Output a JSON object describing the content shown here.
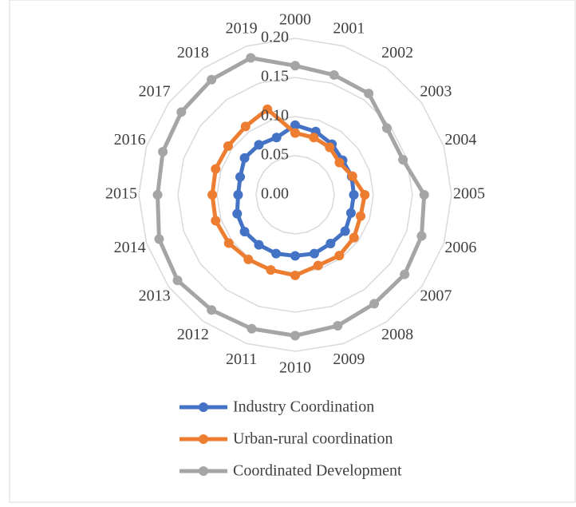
{
  "chart_data": {
    "type": "radar",
    "categories": [
      "2000",
      "2001",
      "2002",
      "2003",
      "2004",
      "2005",
      "2006",
      "2007",
      "2008",
      "2009",
      "2010",
      "2011",
      "2012",
      "2013",
      "2014",
      "2015",
      "2016",
      "2017",
      "2018",
      "2019"
    ],
    "series": [
      {
        "name": "Industry Coordination",
        "color": "#4472c4",
        "values": [
          0.089,
          0.085,
          0.08,
          0.075,
          0.076,
          0.075,
          0.075,
          0.079,
          0.077,
          0.079,
          0.078,
          0.079,
          0.079,
          0.08,
          0.078,
          0.073,
          0.074,
          0.08,
          0.079,
          0.077
        ]
      },
      {
        "name": "Urban-rural coordination",
        "color": "#ed7d31",
        "values": [
          0.079,
          0.077,
          0.075,
          0.07,
          0.077,
          0.089,
          0.088,
          0.093,
          0.096,
          0.095,
          0.103,
          0.101,
          0.102,
          0.105,
          0.107,
          0.106,
          0.107,
          0.106,
          0.108,
          0.115
        ]
      },
      {
        "name": "Coordinated Development",
        "color": "#a5a5a5",
        "values": [
          0.165,
          0.161,
          0.16,
          0.145,
          0.145,
          0.165,
          0.17,
          0.173,
          0.172,
          0.176,
          0.18,
          0.18,
          0.182,
          0.186,
          0.183,
          0.176,
          0.178,
          0.18,
          0.182,
          0.184
        ]
      }
    ],
    "rlim": [
      0,
      0.2
    ],
    "rticks": [
      {
        "value": 0,
        "label": "0.00"
      },
      {
        "value": 0.05,
        "label": "0.05"
      },
      {
        "value": 0.1,
        "label": "0.10"
      },
      {
        "value": 0.15,
        "label": "0.15"
      },
      {
        "value": 0.2,
        "label": "0.20"
      }
    ],
    "grid": true
  }
}
